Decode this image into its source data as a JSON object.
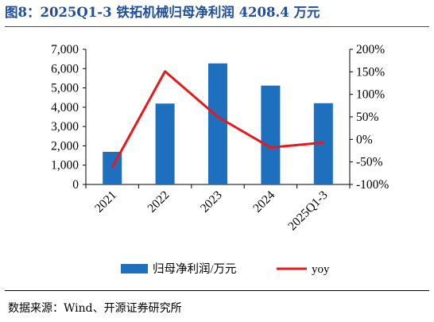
{
  "title": "图8：2025Q1-3 铁拓机械归母净利润 4208.4 万元",
  "source": "数据来源：Wind、开源证券研究所",
  "colors": {
    "bar": "#1f6fbf",
    "line": "#e8191a",
    "title": "#1f4e9c"
  },
  "chart_data": {
    "type": "bar+line",
    "categories": [
      "2021",
      "2022",
      "2023",
      "2024",
      "2025Q1-3"
    ],
    "series": [
      {
        "name": "归母净利润/万元",
        "type": "bar",
        "axis": "left",
        "values": [
          1690,
          4190,
          6270,
          5120,
          4208.4
        ]
      },
      {
        "name": "yoy",
        "type": "line",
        "axis": "right",
        "values": [
          -62,
          151,
          50,
          -18,
          -7
        ]
      }
    ],
    "y_left": {
      "ylim": [
        0,
        7000
      ],
      "ticks": [
        "0",
        "1,000",
        "2,000",
        "3,000",
        "4,000",
        "5,000",
        "6,000",
        "7,000"
      ],
      "tick_values": [
        0,
        1000,
        2000,
        3000,
        4000,
        5000,
        6000,
        7000
      ]
    },
    "y_right": {
      "ylim": [
        -100,
        200
      ],
      "ticks": [
        "-100%",
        "-50%",
        "0%",
        "50%",
        "100%",
        "150%",
        "200%"
      ],
      "tick_values": [
        -100,
        -50,
        0,
        50,
        100,
        150,
        200
      ]
    },
    "legend_position": "bottom",
    "grid": false
  }
}
